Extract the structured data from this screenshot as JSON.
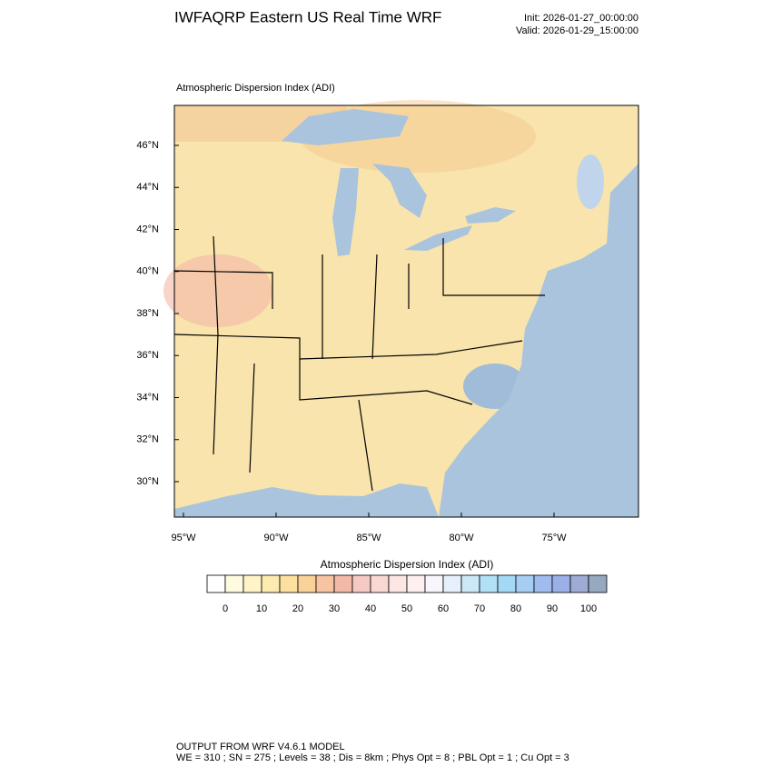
{
  "header": {
    "title": "IWFAQRP Eastern US Real Time WRF",
    "init": "Init: 2026-01-27_00:00:00",
    "valid": "Valid: 2026-01-29_15:00:00"
  },
  "map": {
    "title": "Atmospheric Dispersion Index   (ADI)",
    "lat_labels": [
      "46°N",
      "44°N",
      "42°N",
      "40°N",
      "38°N",
      "36°N",
      "34°N",
      "32°N",
      "30°N"
    ],
    "lon_labels": [
      "95°W",
      "90°W",
      "85°W",
      "80°W",
      "75°W"
    ]
  },
  "colorbar": {
    "title": "Atmospheric Dispersion Index  (ADI)",
    "labels": [
      "0",
      "10",
      "20",
      "30",
      "40",
      "50",
      "60",
      "70",
      "80",
      "90",
      "100"
    ],
    "colors": [
      "#ffffff",
      "#fffbe0",
      "#fff4c8",
      "#fdeab0",
      "#fbe0a0",
      "#f9d29a",
      "#f7c3a0",
      "#f4b8a8",
      "#f7c9c4",
      "#f9d8d4",
      "#fbe6e4",
      "#fdf0ef",
      "#f6f6fc",
      "#e6f0fb",
      "#cbe7f8",
      "#b2e0f6",
      "#a4d8f5",
      "#a6cdf2",
      "#a0bcef",
      "#9cb0e8",
      "#9eabd4",
      "#97a9c0"
    ]
  },
  "footer": {
    "line1": "OUTPUT FROM WRF V4.6.1 MODEL",
    "line2": "WE = 310 ; SN = 275 ; Levels = 38 ; Dis = 8km ; Phys Opt = 8 ; PBL Opt = 1 ; Cu Opt = 3"
  }
}
